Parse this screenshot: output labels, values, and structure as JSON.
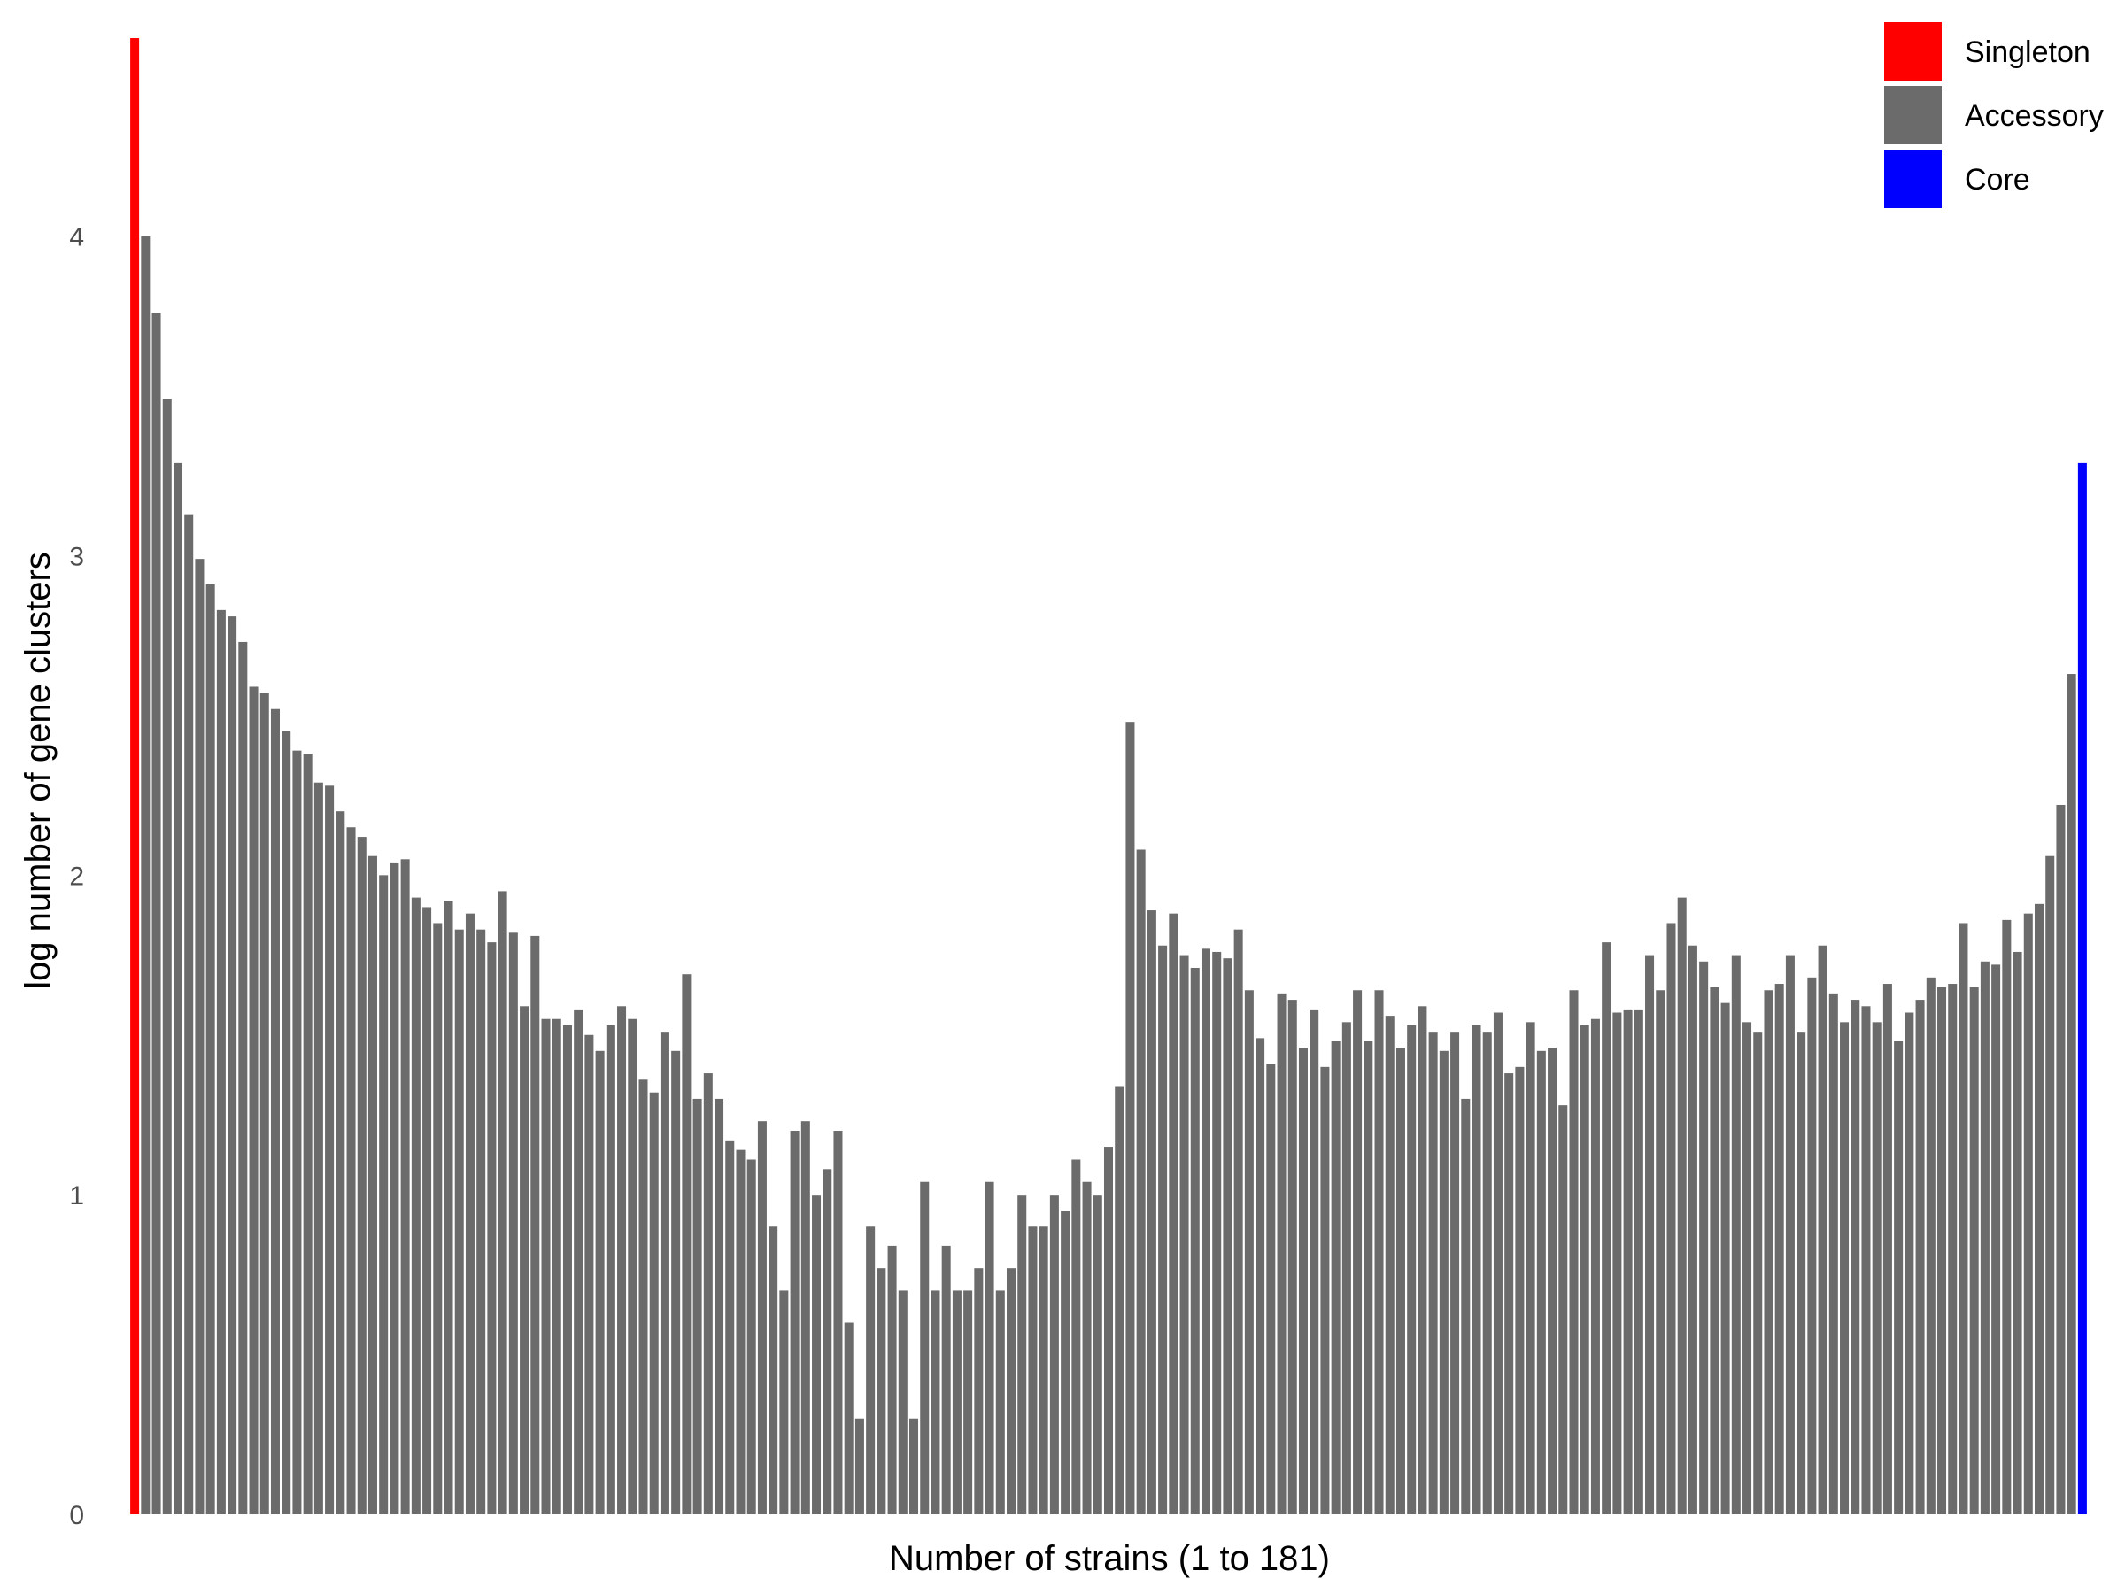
{
  "chart_data": {
    "type": "bar",
    "xlabel": "Number of strains (1 to 181)",
    "ylabel": "log number of gene clusters",
    "ylim": [
      0,
      4.62
    ],
    "yticks": [
      0,
      1,
      2,
      3,
      4
    ],
    "x": [
      1,
      2,
      3,
      4,
      5,
      6,
      7,
      8,
      9,
      10,
      11,
      12,
      13,
      14,
      15,
      16,
      17,
      18,
      19,
      20,
      21,
      22,
      23,
      24,
      25,
      26,
      27,
      28,
      29,
      30,
      31,
      32,
      33,
      34,
      35,
      36,
      37,
      38,
      39,
      40,
      41,
      42,
      43,
      44,
      45,
      46,
      47,
      48,
      49,
      50,
      51,
      52,
      53,
      54,
      55,
      56,
      57,
      58,
      59,
      60,
      61,
      62,
      63,
      64,
      65,
      66,
      67,
      68,
      69,
      70,
      71,
      72,
      73,
      74,
      75,
      76,
      77,
      78,
      79,
      80,
      81,
      82,
      83,
      84,
      85,
      86,
      87,
      88,
      89,
      90,
      91,
      92,
      93,
      94,
      95,
      96,
      97,
      98,
      99,
      100,
      101,
      102,
      103,
      104,
      105,
      106,
      107,
      108,
      109,
      110,
      111,
      112,
      113,
      114,
      115,
      116,
      117,
      118,
      119,
      120,
      121,
      122,
      123,
      124,
      125,
      126,
      127,
      128,
      129,
      130,
      131,
      132,
      133,
      134,
      135,
      136,
      137,
      138,
      139,
      140,
      141,
      142,
      143,
      144,
      145,
      146,
      147,
      148,
      149,
      150,
      151,
      152,
      153,
      154,
      155,
      156,
      157,
      158,
      159,
      160,
      161,
      162,
      163,
      164,
      165,
      166,
      167,
      168,
      169,
      170,
      171,
      172,
      173,
      174,
      175,
      176,
      177,
      178,
      179,
      180,
      181
    ],
    "values": [
      4.62,
      4.0,
      3.76,
      3.49,
      3.29,
      3.13,
      2.99,
      2.91,
      2.83,
      2.81,
      2.73,
      2.59,
      2.57,
      2.52,
      2.45,
      2.39,
      2.38,
      2.29,
      2.28,
      2.2,
      2.15,
      2.12,
      2.06,
      2.0,
      2.04,
      2.05,
      1.93,
      1.9,
      1.85,
      1.92,
      1.83,
      1.88,
      1.83,
      1.79,
      1.95,
      1.82,
      1.59,
      1.81,
      1.55,
      1.55,
      1.53,
      1.58,
      1.5,
      1.45,
      1.53,
      1.59,
      1.55,
      1.36,
      1.32,
      1.51,
      1.45,
      1.69,
      1.3,
      1.38,
      1.3,
      1.17,
      1.14,
      1.11,
      1.23,
      0.9,
      0.7,
      1.2,
      1.23,
      1.0,
      1.08,
      1.2,
      0.6,
      0.3,
      0.9,
      0.77,
      0.84,
      0.7,
      0.3,
      1.04,
      0.7,
      0.84,
      0.7,
      0.7,
      0.77,
      1.04,
      0.7,
      0.77,
      1.0,
      0.9,
      0.9,
      1.0,
      0.95,
      1.11,
      1.04,
      1.0,
      1.15,
      1.34,
      2.48,
      2.08,
      1.89,
      1.78,
      1.88,
      1.75,
      1.71,
      1.77,
      1.76,
      1.74,
      1.83,
      1.64,
      1.49,
      1.41,
      1.63,
      1.61,
      1.46,
      1.58,
      1.4,
      1.48,
      1.54,
      1.64,
      1.48,
      1.64,
      1.56,
      1.46,
      1.53,
      1.59,
      1.51,
      1.45,
      1.51,
      1.3,
      1.53,
      1.51,
      1.57,
      1.38,
      1.4,
      1.54,
      1.45,
      1.46,
      1.28,
      1.64,
      1.53,
      1.55,
      1.79,
      1.57,
      1.58,
      1.58,
      1.75,
      1.64,
      1.85,
      1.93,
      1.78,
      1.73,
      1.65,
      1.6,
      1.75,
      1.54,
      1.51,
      1.64,
      1.66,
      1.75,
      1.51,
      1.68,
      1.78,
      1.63,
      1.54,
      1.61,
      1.59,
      1.54,
      1.66,
      1.48,
      1.57,
      1.61,
      1.68,
      1.65,
      1.66,
      1.85,
      1.65,
      1.73,
      1.72,
      1.86,
      1.76,
      1.88,
      1.91,
      2.06,
      2.22,
      2.63,
      3.29
    ],
    "categories_of_bars": {
      "first": "Singleton",
      "last": "Core",
      "others": "Accessory"
    },
    "legend": {
      "position": "top-right",
      "entries": [
        {
          "label": "Singleton",
          "color": "#ff0000"
        },
        {
          "label": "Accessory",
          "color": "#6b6b6b"
        },
        {
          "label": "Core",
          "color": "#0000ff"
        }
      ]
    },
    "grid": false,
    "colors": {
      "singleton": "#ff0000",
      "accessory": "#6b6b6b",
      "core": "#0000ff"
    }
  }
}
